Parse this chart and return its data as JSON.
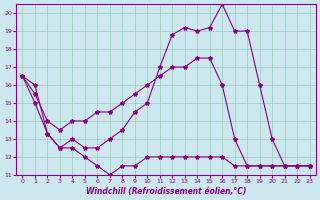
{
  "xlabel": "Windchill (Refroidissement éolien,°C)",
  "bg_color": "#cce8ee",
  "line_color": "#880088",
  "grid_color": "#99ccbb",
  "xlim": [
    -0.5,
    23.5
  ],
  "ylim": [
    11,
    20.5
  ],
  "xticks": [
    0,
    1,
    2,
    3,
    4,
    5,
    6,
    7,
    8,
    9,
    10,
    11,
    12,
    13,
    14,
    15,
    16,
    17,
    18,
    19,
    20,
    21,
    22,
    23
  ],
  "yticks": [
    11,
    12,
    13,
    14,
    15,
    16,
    17,
    18,
    19,
    20
  ],
  "line1_x": [
    0,
    1,
    2,
    3,
    4,
    5,
    6,
    7,
    8,
    9,
    10,
    11,
    12,
    13,
    14,
    15,
    16,
    17,
    18,
    19,
    20,
    21,
    22,
    23
  ],
  "line1_y": [
    16.5,
    16.0,
    13.3,
    12.5,
    13.0,
    12.5,
    12.5,
    13.0,
    13.5,
    14.5,
    15.0,
    17.0,
    18.8,
    19.2,
    19.0,
    19.2,
    20.5,
    19.0,
    19.0,
    16.0,
    13.0,
    11.5,
    11.5,
    11.5
  ],
  "line2_x": [
    0,
    1,
    2,
    3,
    4,
    5,
    6,
    7,
    8,
    9,
    10,
    11,
    12,
    13,
    14,
    15,
    16,
    17,
    18,
    19,
    20,
    21,
    22,
    23
  ],
  "line2_y": [
    16.5,
    15.5,
    14.0,
    13.5,
    14.0,
    14.0,
    14.5,
    14.5,
    15.0,
    15.5,
    16.0,
    16.5,
    17.0,
    17.0,
    17.5,
    17.5,
    16.0,
    13.0,
    11.5,
    11.5,
    11.5,
    11.5,
    11.5,
    11.5
  ],
  "line3_x": [
    0,
    1,
    2,
    3,
    4,
    5,
    6,
    7,
    8,
    9,
    10,
    11,
    12,
    13,
    14,
    15,
    16,
    17,
    18,
    19,
    20,
    21,
    22,
    23
  ],
  "line3_y": [
    16.5,
    15.0,
    13.3,
    12.5,
    12.5,
    12.0,
    11.5,
    11.0,
    11.5,
    11.5,
    12.0,
    12.0,
    12.0,
    12.0,
    12.0,
    12.0,
    12.0,
    11.5,
    11.5,
    11.5,
    11.5,
    11.5,
    11.5,
    11.5
  ]
}
